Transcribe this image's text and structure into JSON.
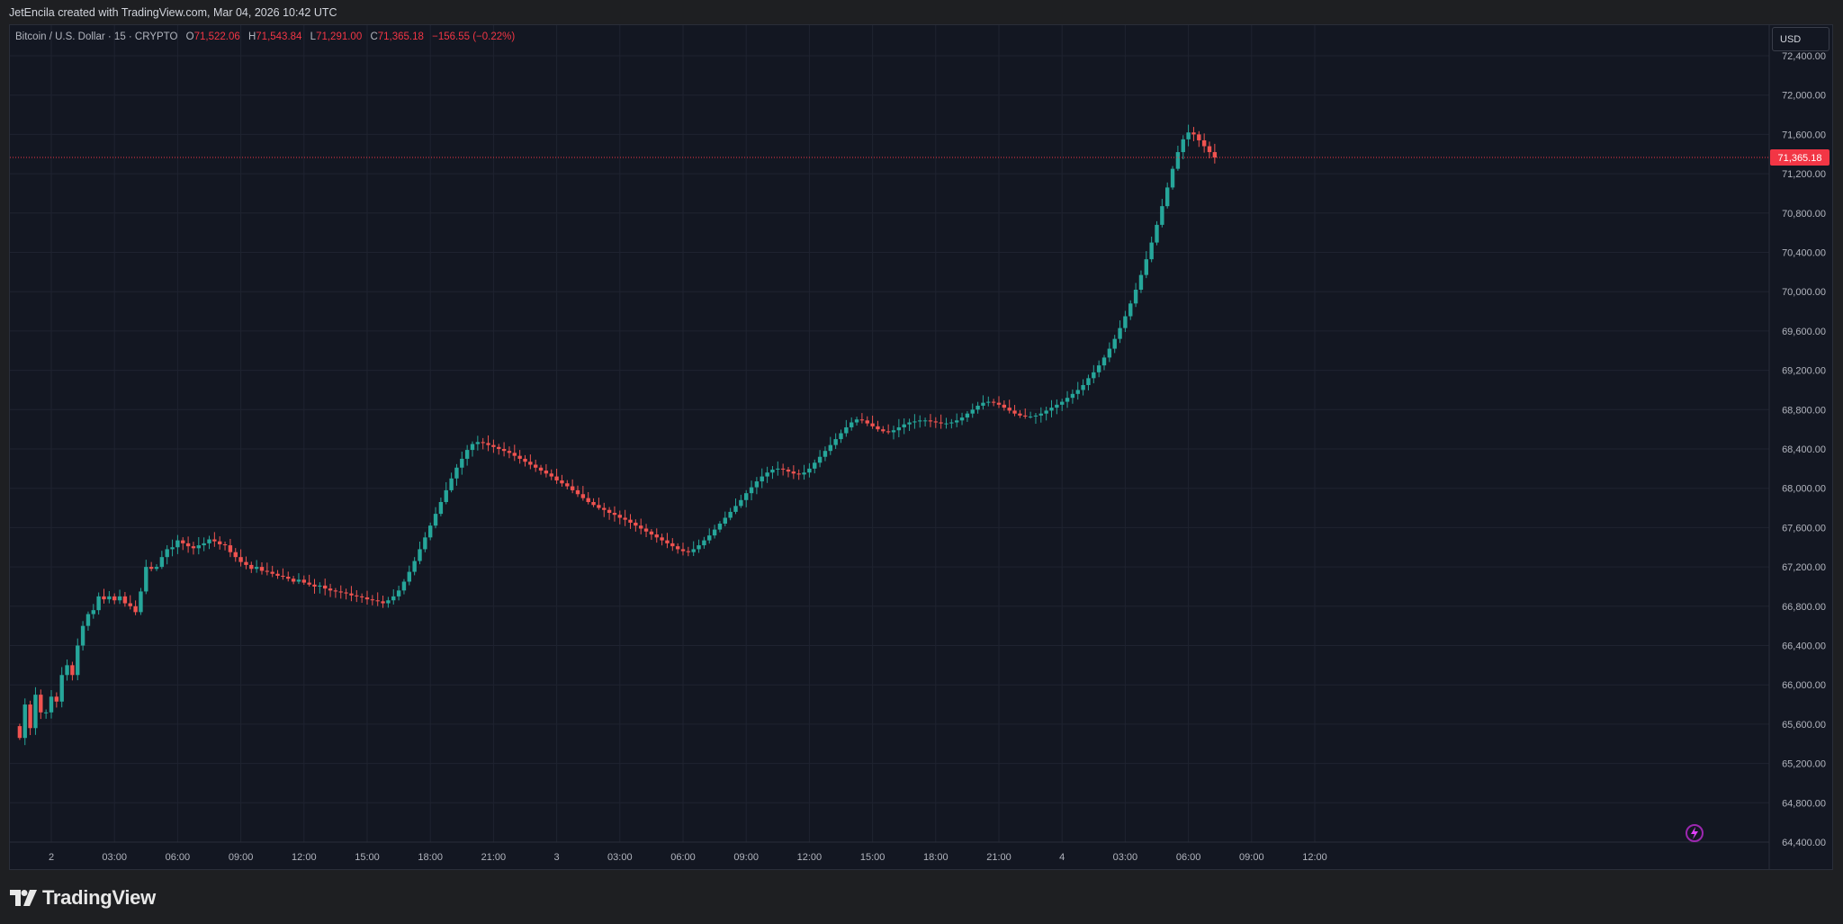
{
  "header": {
    "credit": "JetEncila created with TradingView.com, Mar 04, 2026 10:42 UTC"
  },
  "legend": {
    "symbol": "Bitcoin / U.S. Dollar · 15 · CRYPTO",
    "o_label": "O",
    "o_value": "71,522.06",
    "h_label": "H",
    "h_value": "71,543.84",
    "l_label": "L",
    "l_value": "71,291.00",
    "c_label": "C",
    "c_value": "71,365.18",
    "change": "−156.55 (−0.22%)"
  },
  "currency_button": "USD",
  "last_price_label": "71,365.18",
  "brand": {
    "wordmark": "TradingView"
  },
  "colors": {
    "background": "#131722",
    "grid": "#1f2330",
    "up": "#26a69a",
    "down": "#ef5350",
    "price_line": "#f23645",
    "axis_text": "#b2b5be",
    "outer": "#1e1f22"
  },
  "chart_data": {
    "type": "candlestick",
    "symbol": "BTCUSD",
    "interval": "15",
    "last_price": 71365.18,
    "ylim": [
      64400,
      72400
    ],
    "y_ticks": [
      "64,400.00",
      "64,800.00",
      "65,200.00",
      "65,600.00",
      "66,000.00",
      "66,400.00",
      "66,800.00",
      "67,200.00",
      "67,600.00",
      "68,000.00",
      "68,400.00",
      "68,800.00",
      "69,200.00",
      "69,600.00",
      "70,000.00",
      "70,400.00",
      "70,800.00",
      "71,200.00",
      "71,600.00",
      "72,000.00",
      "72,400.00"
    ],
    "x_ticks": [
      "2",
      "03:00",
      "06:00",
      "09:00",
      "12:00",
      "15:00",
      "18:00",
      "21:00",
      "3",
      "03:00",
      "06:00",
      "09:00",
      "12:00",
      "15:00",
      "18:00",
      "21:00",
      "4",
      "03:00",
      "06:00",
      "09:00",
      "12:00"
    ],
    "x_tick_hours": [
      0,
      3,
      6,
      9,
      12,
      15,
      18,
      21,
      24,
      27,
      30,
      33,
      36,
      39,
      42,
      45,
      48,
      51,
      54,
      57,
      60
    ],
    "candle_hours_start": -1.5,
    "candle_interval_hours": 0.25,
    "closes": [
      65460,
      65800,
      65560,
      65900,
      65720,
      65720,
      65880,
      65830,
      66100,
      66200,
      66100,
      66400,
      66600,
      66720,
      66760,
      66900,
      66870,
      66900,
      66860,
      66900,
      66830,
      66800,
      66740,
      66950,
      67200,
      67180,
      67200,
      67300,
      67380,
      67400,
      67470,
      67440,
      67410,
      67390,
      67420,
      67440,
      67480,
      67460,
      67430,
      67420,
      67350,
      67300,
      67250,
      67220,
      67180,
      67200,
      67160,
      67150,
      67130,
      67110,
      67100,
      67080,
      67050,
      67070,
      67040,
      67020,
      67000,
      67010,
      66980,
      66960,
      66950,
      66940,
      66930,
      66910,
      66900,
      66890,
      66870,
      66860,
      66850,
      66830,
      66860,
      66900,
      66960,
      67050,
      67150,
      67260,
      67380,
      67500,
      67620,
      67740,
      67860,
      67980,
      68100,
      68210,
      68300,
      68390,
      68450,
      68470,
      68460,
      68440,
      68420,
      68400,
      68380,
      68360,
      68330,
      68300,
      68270,
      68240,
      68210,
      68180,
      68150,
      68120,
      68080,
      68050,
      68020,
      67980,
      67940,
      67900,
      67860,
      67830,
      67800,
      67780,
      67750,
      67730,
      67700,
      67680,
      67650,
      67620,
      67590,
      67560,
      67530,
      67500,
      67470,
      67440,
      67410,
      67380,
      67360,
      67350,
      67380,
      67420,
      67470,
      67520,
      67580,
      67640,
      67700,
      67760,
      67820,
      67880,
      67950,
      68010,
      68070,
      68120,
      68160,
      68190,
      68200,
      68190,
      68170,
      68150,
      68140,
      68160,
      68200,
      68260,
      68320,
      68380,
      68440,
      68500,
      68560,
      68620,
      68670,
      68700,
      68690,
      68660,
      68630,
      68600,
      68580,
      68570,
      68590,
      68620,
      68650,
      68670,
      68680,
      68690,
      68690,
      68680,
      68670,
      68660,
      68660,
      68670,
      68690,
      68720,
      68760,
      68800,
      68840,
      68870,
      68880,
      68870,
      68850,
      68820,
      68790,
      68760,
      68740,
      68730,
      68730,
      68740,
      68760,
      68790,
      68820,
      68850,
      68880,
      68920,
      68960,
      69000,
      69050,
      69120,
      69180,
      69250,
      69330,
      69420,
      69520,
      69630,
      69750,
      69880,
      70020,
      70170,
      70330,
      70500,
      70680,
      70870,
      71060,
      71250,
      71420,
      71550,
      71620,
      71600,
      71540,
      71480,
      71420,
      71365
    ]
  }
}
